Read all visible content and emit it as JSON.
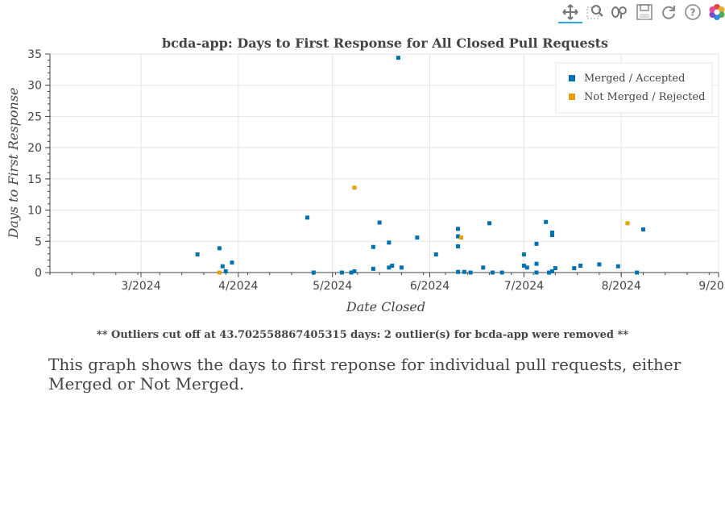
{
  "toolbar": {
    "tools": [
      {
        "name": "pan-tool",
        "icon": "pan-icon",
        "active": true
      },
      {
        "name": "box-zoom-tool",
        "icon": "box-zoom-icon",
        "active": false
      },
      {
        "name": "wheel-zoom-tool",
        "icon": "wheel-zoom-icon",
        "active": false
      },
      {
        "name": "save-tool",
        "icon": "save-icon",
        "active": false
      },
      {
        "name": "reset-tool",
        "icon": "reset-icon",
        "active": false
      },
      {
        "name": "help-tool",
        "icon": "help-icon",
        "active": false
      },
      {
        "name": "bokeh-logo",
        "icon": "bokeh-logo-icon",
        "active": false
      }
    ]
  },
  "chart_data": {
    "type": "scatter",
    "title": "bcda-app: Days to First Response for All Closed Pull Requests",
    "xlabel": "Date Closed",
    "ylabel": "Days to First Response",
    "xlim": [
      "2024-02-01",
      "2024-09-01"
    ],
    "ylim": [
      0,
      35
    ],
    "x_ticks": [
      "3/2024",
      "4/2024",
      "5/2024",
      "6/2024",
      "7/2024",
      "8/2024",
      "9/2024"
    ],
    "y_ticks": [
      0,
      5,
      10,
      15,
      20,
      25,
      30,
      35
    ],
    "grid": true,
    "legend_position": "top-right",
    "series": [
      {
        "name": "Merged / Accepted",
        "color": "#0072b2",
        "points": [
          [
            "2024-03-19",
            2.9
          ],
          [
            "2024-03-26",
            3.9
          ],
          [
            "2024-03-27",
            1.0
          ],
          [
            "2024-03-28",
            0.2
          ],
          [
            "2024-03-30",
            1.6
          ],
          [
            "2024-04-23",
            8.8
          ],
          [
            "2024-04-25",
            0.0
          ],
          [
            "2024-05-04",
            0.0
          ],
          [
            "2024-05-07",
            0.0
          ],
          [
            "2024-05-08",
            0.2
          ],
          [
            "2024-05-14",
            0.6
          ],
          [
            "2024-05-14",
            4.1
          ],
          [
            "2024-05-16",
            8.0
          ],
          [
            "2024-05-19",
            4.8
          ],
          [
            "2024-05-19",
            0.8
          ],
          [
            "2024-05-20",
            1.1
          ],
          [
            "2024-05-22",
            34.4
          ],
          [
            "2024-05-23",
            0.8
          ],
          [
            "2024-05-28",
            5.6
          ],
          [
            "2024-06-03",
            2.9
          ],
          [
            "2024-06-10",
            7.0
          ],
          [
            "2024-06-10",
            5.8
          ],
          [
            "2024-06-10",
            4.2
          ],
          [
            "2024-06-10",
            0.1
          ],
          [
            "2024-06-12",
            0.1
          ],
          [
            "2024-06-14",
            0.0
          ],
          [
            "2024-06-18",
            0.8
          ],
          [
            "2024-06-20",
            7.9
          ],
          [
            "2024-06-21",
            0.0
          ],
          [
            "2024-06-24",
            0.0
          ],
          [
            "2024-07-01",
            2.9
          ],
          [
            "2024-07-01",
            1.1
          ],
          [
            "2024-07-02",
            0.8
          ],
          [
            "2024-07-05",
            4.6
          ],
          [
            "2024-07-05",
            1.4
          ],
          [
            "2024-07-05",
            0.0
          ],
          [
            "2024-07-08",
            8.1
          ],
          [
            "2024-07-09",
            0.0
          ],
          [
            "2024-07-10",
            6.4
          ],
          [
            "2024-07-10",
            6.0
          ],
          [
            "2024-07-10",
            0.2
          ],
          [
            "2024-07-11",
            0.7
          ],
          [
            "2024-07-17",
            0.7
          ],
          [
            "2024-07-19",
            1.1
          ],
          [
            "2024-07-25",
            1.3
          ],
          [
            "2024-07-31",
            1.0
          ],
          [
            "2024-08-06",
            0.0
          ],
          [
            "2024-08-08",
            6.9
          ]
        ]
      },
      {
        "name": "Not Merged / Rejected",
        "color": "#e69f00",
        "points": [
          [
            "2024-03-26",
            0.0
          ],
          [
            "2024-05-08",
            13.6
          ],
          [
            "2024-06-11",
            5.6
          ],
          [
            "2024-08-03",
            7.9
          ]
        ]
      }
    ]
  },
  "footnote": "** Outliers cut off at 43.702558867405315 days: 2 outlier(s) for bcda-app were removed **",
  "description": "This graph shows the days to first reponse for individual pull requests, either Merged or Not Merged."
}
